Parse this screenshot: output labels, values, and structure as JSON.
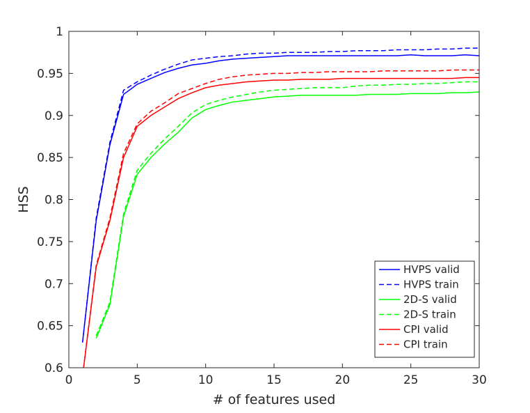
{
  "chart_data": {
    "type": "line",
    "title": "",
    "xlabel": "# of features used",
    "ylabel": "HSS",
    "xlim": [
      0,
      30
    ],
    "ylim": [
      0.6,
      1
    ],
    "xticks": [
      0,
      5,
      10,
      15,
      20,
      25,
      30
    ],
    "yticks": [
      0.6,
      0.65,
      0.7,
      0.75,
      0.8,
      0.85,
      0.9,
      0.95,
      1
    ],
    "ytick_labels": [
      "0.6",
      "0.65",
      "0.7",
      "0.75",
      "0.8",
      "0.85",
      "0.9",
      "0.95",
      "1"
    ],
    "grid": false,
    "legend_position": "bottom-right",
    "x": [
      1,
      2,
      3,
      4,
      5,
      6,
      7,
      8,
      9,
      10,
      11,
      12,
      13,
      14,
      15,
      16,
      17,
      18,
      19,
      20,
      21,
      22,
      23,
      24,
      25,
      26,
      27,
      28,
      29,
      30
    ],
    "series": [
      {
        "name": "HVPS valid",
        "color": "#0000ff",
        "dash": "solid",
        "values": [
          0.63,
          0.775,
          0.865,
          0.925,
          0.937,
          0.944,
          0.951,
          0.956,
          0.96,
          0.962,
          0.965,
          0.967,
          0.968,
          0.969,
          0.97,
          0.971,
          0.971,
          0.971,
          0.971,
          0.971,
          0.971,
          0.971,
          0.971,
          0.971,
          0.972,
          0.971,
          0.971,
          0.971,
          0.972,
          0.971
        ]
      },
      {
        "name": "HVPS train",
        "color": "#0000ff",
        "dash": "dashed",
        "values": [
          0.63,
          0.778,
          0.868,
          0.93,
          0.94,
          0.948,
          0.955,
          0.961,
          0.966,
          0.968,
          0.97,
          0.971,
          0.973,
          0.974,
          0.974,
          0.975,
          0.975,
          0.975,
          0.976,
          0.976,
          0.977,
          0.977,
          0.977,
          0.978,
          0.978,
          0.978,
          0.979,
          0.979,
          0.98,
          0.98
        ]
      },
      {
        "name": "2D-S valid",
        "color": "#00ff00",
        "dash": "solid",
        "values": [
          null,
          0.635,
          0.675,
          0.78,
          0.83,
          0.85,
          0.866,
          0.88,
          0.897,
          0.907,
          0.912,
          0.916,
          0.918,
          0.92,
          0.922,
          0.923,
          0.924,
          0.924,
          0.924,
          0.924,
          0.924,
          0.925,
          0.925,
          0.925,
          0.926,
          0.926,
          0.926,
          0.927,
          0.927,
          0.928
        ]
      },
      {
        "name": "2D-S train",
        "color": "#00ff00",
        "dash": "dashed",
        "values": [
          null,
          0.638,
          0.678,
          0.783,
          0.835,
          0.855,
          0.872,
          0.887,
          0.903,
          0.913,
          0.918,
          0.922,
          0.925,
          0.928,
          0.93,
          0.931,
          0.932,
          0.933,
          0.933,
          0.933,
          0.935,
          0.936,
          0.936,
          0.937,
          0.937,
          0.938,
          0.938,
          0.939,
          0.94,
          0.94
        ]
      },
      {
        "name": "CPI valid",
        "color": "#ff0000",
        "dash": "solid",
        "values": [
          0.59,
          0.72,
          0.775,
          0.85,
          0.887,
          0.9,
          0.91,
          0.92,
          0.927,
          0.933,
          0.936,
          0.938,
          0.94,
          0.941,
          0.942,
          0.942,
          0.943,
          0.943,
          0.943,
          0.944,
          0.944,
          0.944,
          0.944,
          0.944,
          0.944,
          0.944,
          0.944,
          0.944,
          0.945,
          0.945
        ]
      },
      {
        "name": "CPI train",
        "color": "#ff0000",
        "dash": "dashed",
        "values": [
          0.59,
          0.722,
          0.778,
          0.855,
          0.89,
          0.905,
          0.915,
          0.926,
          0.932,
          0.938,
          0.943,
          0.946,
          0.948,
          0.949,
          0.95,
          0.95,
          0.951,
          0.951,
          0.952,
          0.952,
          0.952,
          0.952,
          0.953,
          0.953,
          0.953,
          0.953,
          0.953,
          0.954,
          0.954,
          0.954
        ]
      }
    ]
  }
}
